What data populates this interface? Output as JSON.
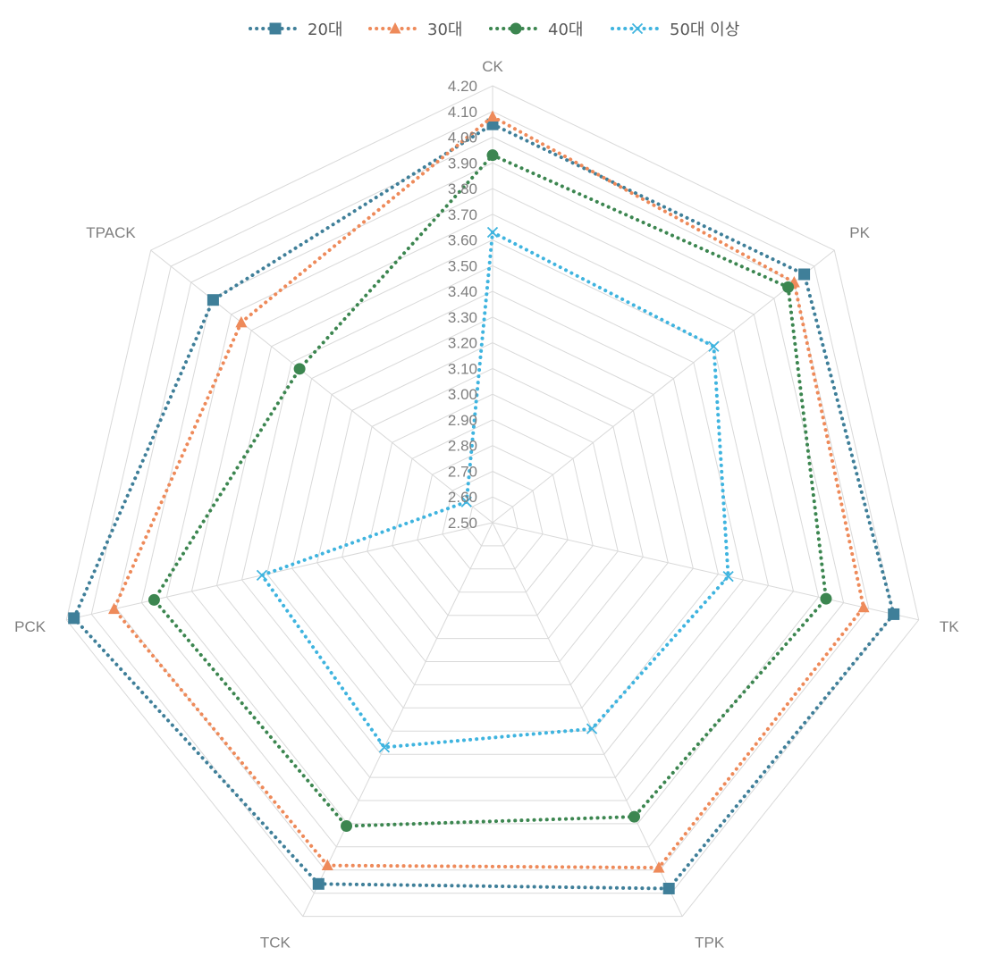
{
  "chart_data": {
    "type": "radar",
    "categories": [
      "CK",
      "PK",
      "TK",
      "TPK",
      "TCK",
      "PCK",
      "TPACK"
    ],
    "rlim": [
      2.5,
      4.2
    ],
    "ticks": [
      "2.50",
      "2.60",
      "2.70",
      "2.80",
      "2.90",
      "3.00",
      "3.10",
      "3.20",
      "3.30",
      "3.40",
      "3.50",
      "3.60",
      "3.70",
      "3.80",
      "3.90",
      "4.00",
      "4.10",
      "4.20"
    ],
    "grid": true,
    "legend_position": "top",
    "series": [
      {
        "name": "20대",
        "color": "#3f7f99",
        "marker": "square",
        "values": [
          4.05,
          4.05,
          4.1,
          4.08,
          4.06,
          4.17,
          3.89
        ]
      },
      {
        "name": "30대",
        "color": "#ee8a5a",
        "marker": "triangle",
        "values": [
          4.08,
          4.0,
          3.98,
          3.99,
          3.98,
          4.01,
          3.75
        ]
      },
      {
        "name": "40대",
        "color": "#3c8650",
        "marker": "circle",
        "values": [
          3.93,
          3.97,
          3.83,
          3.77,
          3.81,
          3.85,
          3.46
        ]
      },
      {
        "name": "50대 이상",
        "color": "#3fb4df",
        "marker": "x",
        "values": [
          3.63,
          3.6,
          3.44,
          3.39,
          3.47,
          3.42,
          2.63
        ]
      }
    ]
  }
}
